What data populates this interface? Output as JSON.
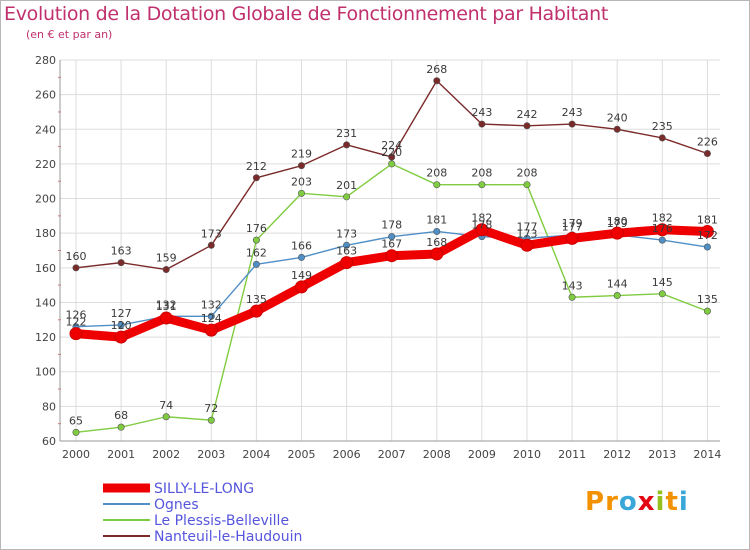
{
  "title": "Evolution de la Dotation Globale de Fonctionnement par Habitant",
  "subtitle": "(en € et par an)",
  "brand": {
    "letters": [
      "P",
      "r",
      "o",
      "x",
      "i",
      "t",
      "i"
    ],
    "colors": [
      "#f39200",
      "#f39200",
      "#3aa7d9",
      "#e30613",
      "#95c11f",
      "#f39200",
      "#3aa7d9"
    ]
  },
  "chart_data": {
    "type": "line",
    "title": "Evolution de la Dotation Globale de Fonctionnement par Habitant",
    "subtitle": "(en € et par an)",
    "xlabel": "",
    "ylabel": "",
    "x": [
      "2000",
      "2001",
      "2002",
      "2003",
      "2004",
      "2005",
      "2006",
      "2007",
      "2008",
      "2009",
      "2010",
      "2011",
      "2012",
      "2013",
      "2014"
    ],
    "ylim": [
      60,
      280
    ],
    "yticks": [
      60,
      80,
      100,
      120,
      140,
      160,
      180,
      200,
      220,
      240,
      260,
      280
    ],
    "grid": true,
    "legend_position": "bottom-left",
    "series": [
      {
        "name": "SILLY-LE-LONG",
        "color": "#ee0000",
        "legend_color": "#5555dd",
        "values": [
          122,
          120,
          131,
          124,
          135,
          149,
          163,
          167,
          168,
          182,
          173,
          177,
          180,
          182,
          181
        ]
      },
      {
        "name": "Ognes",
        "color": "#4f8fc6",
        "legend_color": "#5555dd",
        "values": [
          126,
          127,
          132,
          132,
          162,
          166,
          173,
          178,
          181,
          178,
          177,
          179,
          179,
          176,
          172
        ]
      },
      {
        "name": "Le Plessis-Belleville",
        "color": "#80cc40",
        "legend_color": "#5555dd",
        "values": [
          65,
          68,
          74,
          72,
          176,
          203,
          201,
          220,
          208,
          208,
          208,
          143,
          144,
          145,
          135
        ]
      },
      {
        "name": "Nanteuil-le-Haudouin",
        "color": "#7b2a2a",
        "legend_color": "#5555dd",
        "values": [
          160,
          163,
          159,
          173,
          212,
          219,
          231,
          224,
          268,
          243,
          242,
          243,
          240,
          235,
          226
        ]
      }
    ]
  }
}
